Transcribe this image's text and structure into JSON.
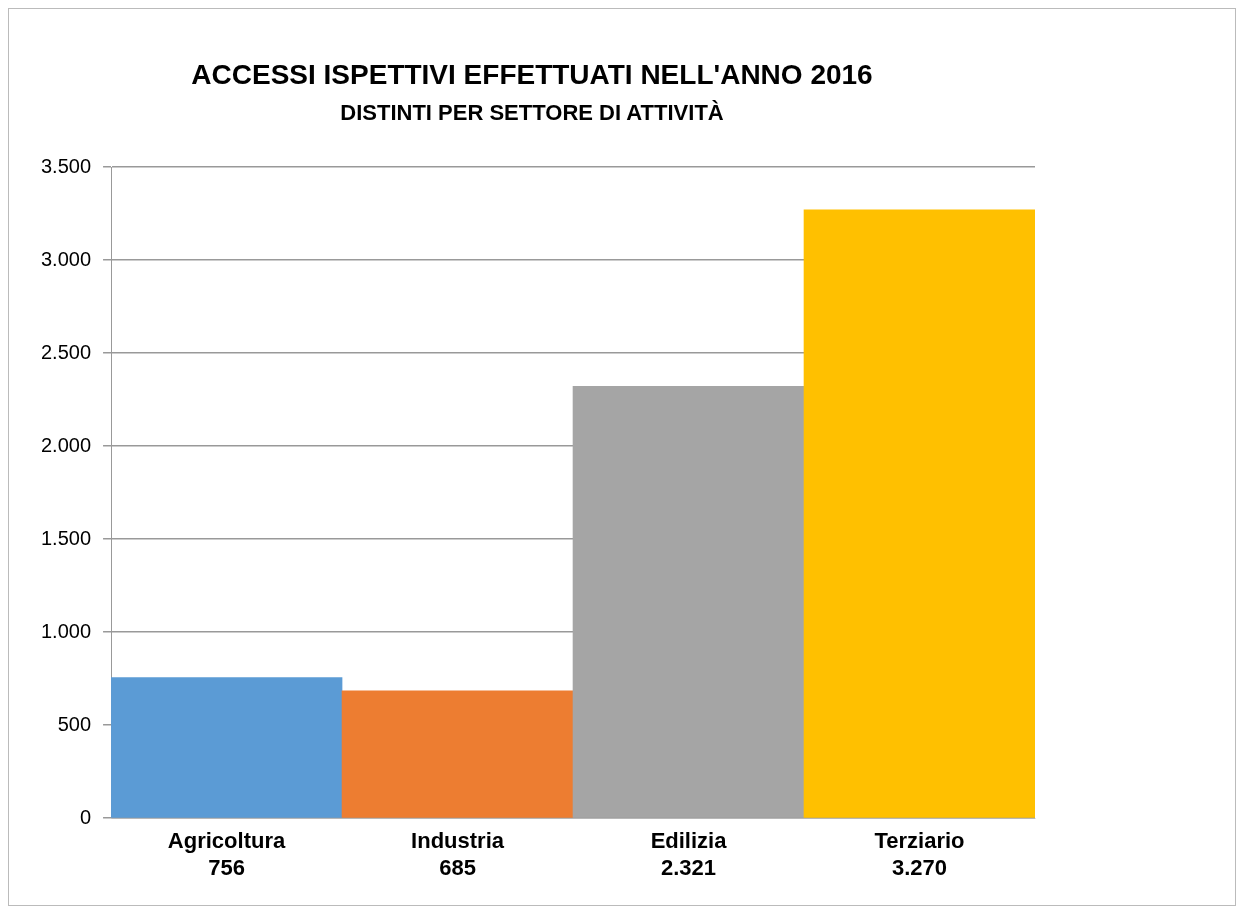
{
  "chart_data": {
    "type": "bar",
    "title": "ACCESSI ISPETTIVI EFFETTUATI NELL'ANNO 2016",
    "subtitle": "DISTINTI PER SETTORE DI ATTIVITÀ",
    "categories": [
      "Agricoltura",
      "Industria",
      "Edilizia",
      "Terziario"
    ],
    "values": [
      756,
      685,
      2321,
      3270
    ],
    "colors": [
      "#5b9bd5",
      "#ed7d31",
      "#a5a5a5",
      "#ffc000"
    ],
    "value_labels": [
      "756",
      "685",
      "2.321",
      "3.270"
    ],
    "ylim": [
      0,
      3500
    ],
    "yticks": [
      {
        "value": 0,
        "label": "0"
      },
      {
        "value": 500,
        "label": "500"
      },
      {
        "value": 1000,
        "label": "1.000"
      },
      {
        "value": 1500,
        "label": "1.500"
      },
      {
        "value": 2000,
        "label": "2.000"
      },
      {
        "value": 2500,
        "label": "2.500"
      },
      {
        "value": 3000,
        "label": "3.000"
      },
      {
        "value": 3500,
        "label": "3.500"
      }
    ],
    "grid": "y",
    "legend": false
  }
}
